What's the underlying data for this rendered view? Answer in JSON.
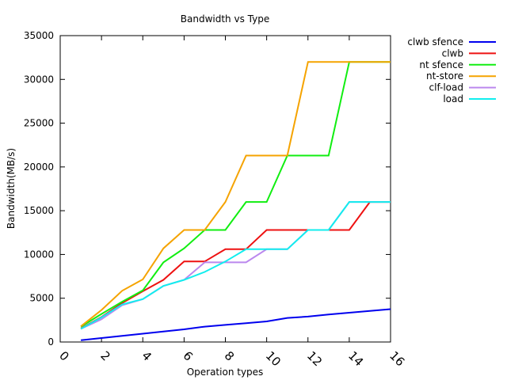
{
  "chart_data": {
    "type": "line",
    "title": "Bandwidth vs Type",
    "xlabel": "Operation types",
    "ylabel": "Bandwidth(MB/s)",
    "xlim": [
      0,
      16
    ],
    "ylim": [
      0,
      35000
    ],
    "x_ticks": [
      0,
      2,
      4,
      6,
      8,
      10,
      12,
      14,
      16
    ],
    "y_ticks": [
      0,
      5000,
      10000,
      15000,
      20000,
      25000,
      30000,
      35000
    ],
    "grid": false,
    "legend_position": "top-right-outside",
    "x": [
      1,
      2,
      3,
      4,
      5,
      6,
      7,
      8,
      9,
      10,
      11,
      12,
      13,
      14,
      15,
      16
    ],
    "series": [
      {
        "name": "clwb sfence",
        "color": "#0000ee",
        "values": [
          200,
          450,
          700,
          950,
          1200,
          1450,
          1750,
          1950,
          2150,
          2350,
          2750,
          2900,
          3150,
          3350,
          3550,
          3750
        ]
      },
      {
        "name": "clwb",
        "color": "#ee1111",
        "values": [
          1550,
          2850,
          4450,
          5800,
          7100,
          9200,
          9200,
          10600,
          10600,
          12800,
          12800,
          12800,
          12800,
          12800,
          16000,
          16000
        ]
      },
      {
        "name": "nt sfence",
        "color": "#11ee11",
        "values": [
          1750,
          3200,
          4600,
          5900,
          9100,
          10700,
          12800,
          12800,
          16000,
          16000,
          21300,
          21300,
          21300,
          32000,
          32000,
          32000
        ]
      },
      {
        "name": "nt-store",
        "color": "#f5a300",
        "values": [
          1800,
          3650,
          5850,
          7150,
          10700,
          12800,
          12800,
          16000,
          21300,
          21300,
          21300,
          32000,
          32000,
          32000,
          32000,
          32000
        ]
      },
      {
        "name": "clf-load",
        "color": "#bb88ee",
        "values": [
          1500,
          2600,
          4200,
          4900,
          6400,
          7100,
          9100,
          9100,
          9100,
          10600,
          10600,
          12800,
          12800,
          16000,
          16000,
          16000
        ]
      },
      {
        "name": "load",
        "color": "#11eeee",
        "values": [
          1500,
          2800,
          4300,
          4900,
          6400,
          7100,
          8000,
          9200,
          10600,
          10600,
          10600,
          12800,
          12800,
          16000,
          16000,
          16000
        ]
      }
    ]
  }
}
